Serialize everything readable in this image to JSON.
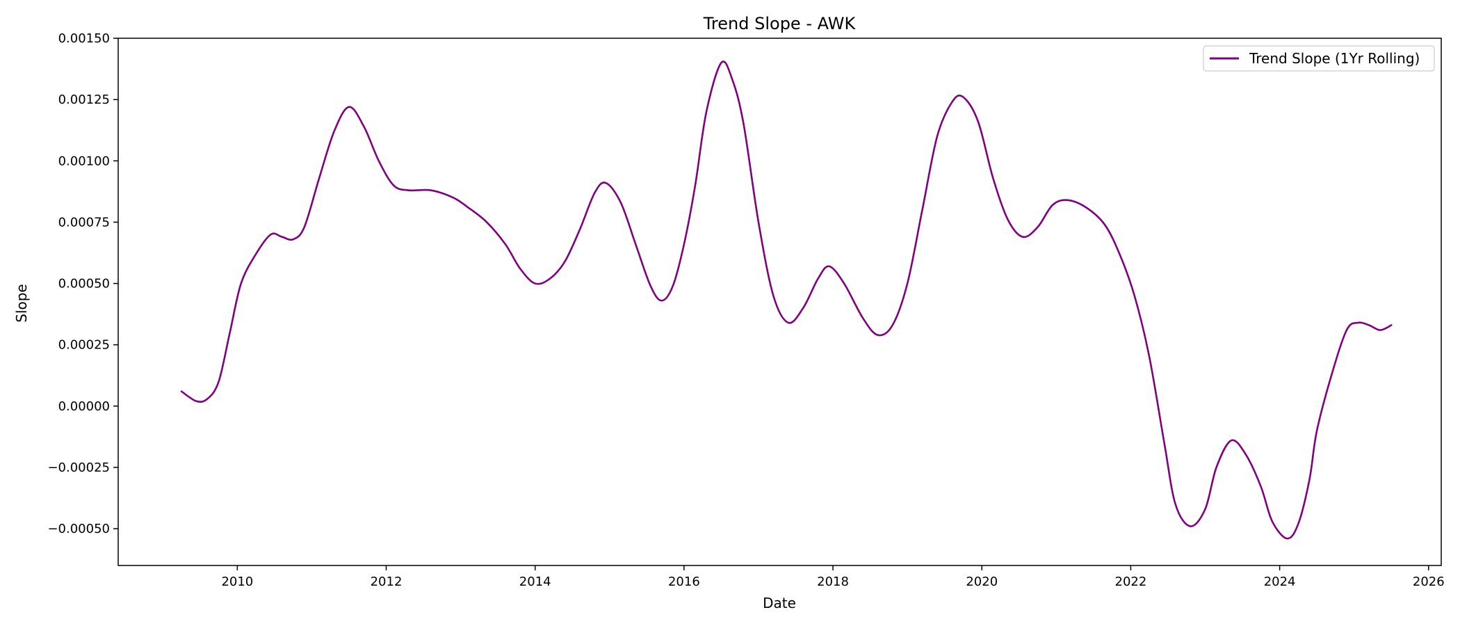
{
  "chart_data": {
    "type": "line",
    "title": "Trend Slope - AWK",
    "xlabel": "Date",
    "ylabel": "Slope",
    "xlim": [
      2008.4,
      2026.17
    ],
    "ylim": [
      -0.00065,
      0.0015
    ],
    "grid": false,
    "legend_position": "top-right",
    "x_ticks": [
      2010,
      2012,
      2014,
      2016,
      2018,
      2020,
      2022,
      2024,
      2026
    ],
    "x_tick_labels": [
      "2010",
      "2012",
      "2014",
      "2016",
      "2018",
      "2020",
      "2022",
      "2024",
      "2026"
    ],
    "y_ticks": [
      -0.0005,
      -0.00025,
      0,
      0.00025,
      0.0005,
      0.00075,
      0.001,
      0.00125,
      0.0015
    ],
    "y_tick_labels": [
      "−0.00050",
      "−0.00025",
      "0.00000",
      "0.00025",
      "0.00050",
      "0.00075",
      "0.00100",
      "0.00125",
      "0.00150"
    ],
    "series": [
      {
        "name": "Trend Slope (1Yr Rolling)",
        "color": "#800080",
        "points": [
          [
            2009.25,
            6e-05
          ],
          [
            2009.45,
            2e-05
          ],
          [
            2009.6,
            3e-05
          ],
          [
            2009.75,
            0.0001
          ],
          [
            2009.9,
            0.0003
          ],
          [
            2010.05,
            0.0005
          ],
          [
            2010.25,
            0.00062
          ],
          [
            2010.45,
            0.0007
          ],
          [
            2010.6,
            0.00069
          ],
          [
            2010.75,
            0.00068
          ],
          [
            2010.9,
            0.00073
          ],
          [
            2011.1,
            0.00093
          ],
          [
            2011.3,
            0.00112
          ],
          [
            2011.5,
            0.00122
          ],
          [
            2011.7,
            0.00114
          ],
          [
            2011.9,
            0.001
          ],
          [
            2012.1,
            0.0009
          ],
          [
            2012.3,
            0.00088
          ],
          [
            2012.6,
            0.00088
          ],
          [
            2012.9,
            0.00085
          ],
          [
            2013.1,
            0.00081
          ],
          [
            2013.35,
            0.00075
          ],
          [
            2013.6,
            0.00066
          ],
          [
            2013.8,
            0.00056
          ],
          [
            2014.0,
            0.0005
          ],
          [
            2014.2,
            0.00052
          ],
          [
            2014.4,
            0.00059
          ],
          [
            2014.6,
            0.00072
          ],
          [
            2014.8,
            0.00087
          ],
          [
            2014.95,
            0.00091
          ],
          [
            2015.15,
            0.00083
          ],
          [
            2015.35,
            0.00066
          ],
          [
            2015.55,
            0.00049
          ],
          [
            2015.7,
            0.00043
          ],
          [
            2015.85,
            0.00049
          ],
          [
            2016.0,
            0.00066
          ],
          [
            2016.15,
            0.0009
          ],
          [
            2016.3,
            0.0012
          ],
          [
            2016.5,
            0.0014
          ],
          [
            2016.65,
            0.00133
          ],
          [
            2016.8,
            0.00115
          ],
          [
            2017.0,
            0.00075
          ],
          [
            2017.2,
            0.00045
          ],
          [
            2017.4,
            0.00034
          ],
          [
            2017.6,
            0.0004
          ],
          [
            2017.8,
            0.00052
          ],
          [
            2017.95,
            0.00057
          ],
          [
            2018.15,
            0.0005
          ],
          [
            2018.4,
            0.00036
          ],
          [
            2018.6,
            0.00029
          ],
          [
            2018.8,
            0.00033
          ],
          [
            2019.0,
            0.0005
          ],
          [
            2019.2,
            0.0008
          ],
          [
            2019.4,
            0.0011
          ],
          [
            2019.6,
            0.00124
          ],
          [
            2019.75,
            0.00126
          ],
          [
            2019.95,
            0.00116
          ],
          [
            2020.15,
            0.00093
          ],
          [
            2020.35,
            0.00076
          ],
          [
            2020.55,
            0.00069
          ],
          [
            2020.75,
            0.00073
          ],
          [
            2020.95,
            0.00082
          ],
          [
            2021.15,
            0.00084
          ],
          [
            2021.4,
            0.00081
          ],
          [
            2021.65,
            0.00074
          ],
          [
            2021.85,
            0.00062
          ],
          [
            2022.05,
            0.00045
          ],
          [
            2022.25,
            0.0002
          ],
          [
            2022.45,
            -0.00015
          ],
          [
            2022.6,
            -0.0004
          ],
          [
            2022.8,
            -0.00049
          ],
          [
            2023.0,
            -0.00042
          ],
          [
            2023.15,
            -0.00025
          ],
          [
            2023.35,
            -0.00014
          ],
          [
            2023.55,
            -0.0002
          ],
          [
            2023.75,
            -0.00033
          ],
          [
            2023.9,
            -0.00047
          ],
          [
            2024.1,
            -0.00054
          ],
          [
            2024.25,
            -0.00048
          ],
          [
            2024.4,
            -0.0003
          ],
          [
            2024.5,
            -0.0001
          ],
          [
            2024.7,
            0.00013
          ],
          [
            2024.9,
            0.00031
          ],
          [
            2025.05,
            0.00034
          ],
          [
            2025.2,
            0.00033
          ],
          [
            2025.35,
            0.00031
          ],
          [
            2025.5,
            0.00033
          ]
        ]
      }
    ]
  }
}
